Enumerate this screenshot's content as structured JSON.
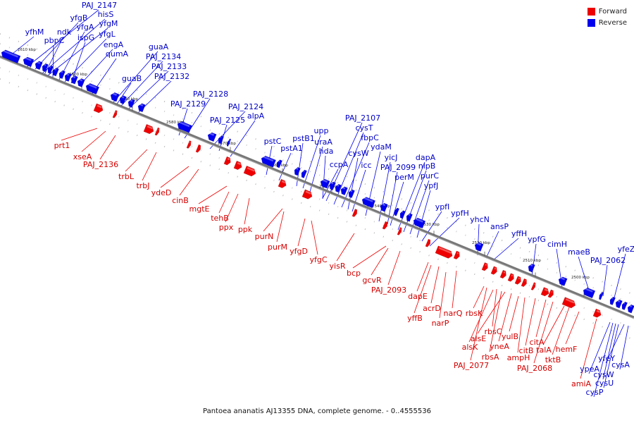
{
  "caption": "Pantoea ananatis AJ13355 DNA, complete genome. - 0..4555536",
  "legend": [
    {
      "label": "Forward",
      "color": "#ee0000"
    },
    {
      "label": "Reverse",
      "color": "#0000ee"
    }
  ],
  "colors": {
    "forward": "#ee0000",
    "reverse": "#0000ee",
    "backbone": "#777777"
  },
  "ticks": [
    "2610 kbp",
    "2600 kbp",
    "2590 kbp",
    "2580 kbp",
    "2570 kbp",
    "2560 kbp",
    "2550 kbp",
    "2540 kbp",
    "2530 kbp",
    "2520 kbp",
    "2510 kbp",
    "2500 kbp"
  ],
  "reverse_genes": [
    "yfhM",
    "PAJ_2147",
    "yfgB",
    "hisS",
    "ndk",
    "yfgM",
    "pbpC",
    "yfgA",
    "yfgL",
    "ispG",
    "engA",
    "qumA",
    "guaA",
    "PAJ_2134",
    "PAJ_2133",
    "PAJ_2132",
    "guaB",
    "PAJ_2128",
    "PAJ_2129",
    "PAJ_2124",
    "alpA",
    "PAJ_2125",
    "pstC",
    "pstA1",
    "pstB1",
    "upp",
    "uraA",
    "hda",
    "PAJ_2107",
    "cysT",
    "fbpC",
    "cysW",
    "ydaM",
    "ccpA",
    "icc",
    "yicJ",
    "dapA",
    "PAJ_2099",
    "nlpB",
    "purC",
    "perM",
    "ypfJ",
    "ypfI",
    "ypfH",
    "yhcN",
    "ansP",
    "yffH",
    "ypfG",
    "cimH",
    "maeB",
    "PAJ_2062",
    "yfeZ",
    "yfeY",
    "cysA",
    "ypeA",
    "cysW",
    "cysU",
    "cysP"
  ],
  "forward_genes": [
    "prt1",
    "xseA",
    "PAJ_2136",
    "trbL",
    "trbJ",
    "ydeD",
    "cinB",
    "mgtE",
    "tehB",
    "ppx",
    "ppk",
    "purN",
    "purM",
    "yfgD",
    "yfgC",
    "yisR",
    "bcp",
    "gcvR",
    "PAJ_2093",
    "dapE",
    "yffB",
    "acrD",
    "narQ",
    "narP",
    "rbsK",
    "rbsC",
    "alsE",
    "alsK",
    "yneA",
    "yulB",
    "rbsA",
    "PAJ_2077",
    "ampH",
    "citA",
    "citB",
    "PAJ_2068",
    "talA",
    "tktB",
    "hemF",
    "amiA"
  ]
}
